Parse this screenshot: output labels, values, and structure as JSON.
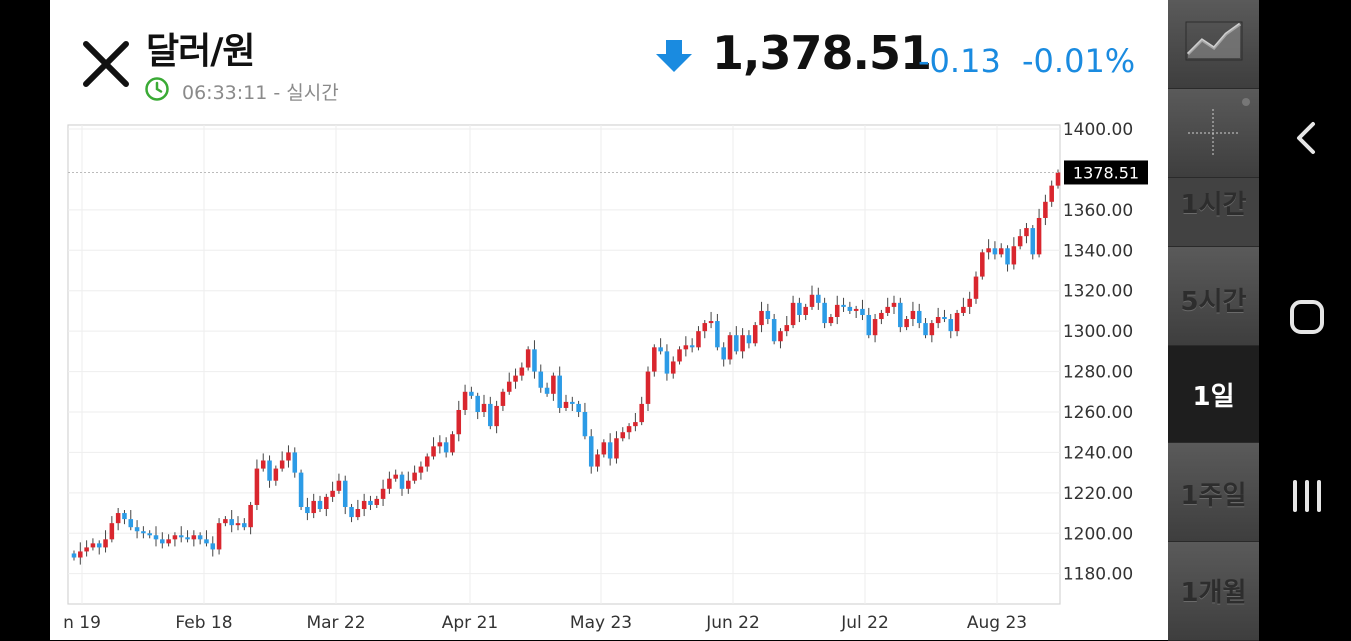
{
  "header": {
    "title": "달러/원",
    "time": "06:33:11",
    "status": "실시간",
    "price": "1,378.51",
    "change": "-0.13",
    "change_pct": "-0.01%"
  },
  "colors": {
    "up": "#d9262e",
    "down": "#2c9be6",
    "change": "#1a8be0"
  },
  "icons": [
    "close-icon",
    "clock-icon",
    "down-arrow-icon",
    "line-chart-icon",
    "crosshair-icon",
    "back-icon",
    "home-icon",
    "recents-icon"
  ],
  "sidebar": {
    "intervals": [
      "1시간",
      "5시간",
      "1일",
      "1주일",
      "1개월"
    ],
    "active_interval": "1일"
  },
  "chart_data": {
    "type": "candlestick",
    "ylim": [
      1165,
      1402
    ],
    "y_ticks": [
      "1400.00",
      "1360.00",
      "1340.00",
      "1320.00",
      "1300.00",
      "1280.00",
      "1260.00",
      "1240.00",
      "1220.00",
      "1200.00",
      "1180.00"
    ],
    "last_price_label": "1378.51",
    "x_labels": [
      "n 19",
      "Feb 18",
      "Mar 22",
      "Apr 21",
      "May 23",
      "Jun 22",
      "Jul 22",
      "Aug 23"
    ],
    "grid": true,
    "closes": [
      1188,
      1191,
      1193,
      1195,
      1193,
      1197,
      1205,
      1210,
      1207,
      1203,
      1201,
      1200,
      1199,
      1197,
      1195,
      1197,
      1199,
      1198,
      1197,
      1199,
      1197,
      1195,
      1192,
      1205,
      1207,
      1204,
      1205,
      1203,
      1214,
      1232,
      1236,
      1226,
      1232,
      1236,
      1240,
      1230,
      1213,
      1210,
      1216,
      1212,
      1218,
      1221,
      1226,
      1213,
      1208,
      1212,
      1216,
      1214,
      1217,
      1222,
      1227,
      1229,
      1222,
      1226,
      1230,
      1233,
      1238,
      1243,
      1245,
      1240,
      1249,
      1261,
      1270,
      1268,
      1260,
      1264,
      1253,
      1263,
      1270,
      1275,
      1278,
      1282,
      1291,
      1280,
      1272,
      1269,
      1278,
      1262,
      1265,
      1264,
      1260,
      1248,
      1233,
      1239,
      1245,
      1237,
      1247,
      1250,
      1253,
      1255,
      1264,
      1280,
      1292,
      1290,
      1279,
      1285,
      1291,
      1293,
      1292,
      1300,
      1304,
      1305,
      1292,
      1286,
      1298,
      1290,
      1298,
      1294,
      1303,
      1310,
      1306,
      1295,
      1300,
      1303,
      1314,
      1308,
      1312,
      1318,
      1314,
      1304,
      1307,
      1313,
      1312,
      1310,
      1311,
      1308,
      1298,
      1306,
      1309,
      1312,
      1314,
      1302,
      1306,
      1310,
      1304,
      1298,
      1304,
      1307,
      1306,
      1300,
      1309,
      1312,
      1316,
      1327,
      1339,
      1341,
      1338,
      1341,
      1333,
      1342,
      1347,
      1351,
      1338,
      1356,
      1364,
      1372,
      1378.51
    ]
  },
  "nav": {
    "back": "back",
    "home": "home",
    "recents": "recents"
  }
}
